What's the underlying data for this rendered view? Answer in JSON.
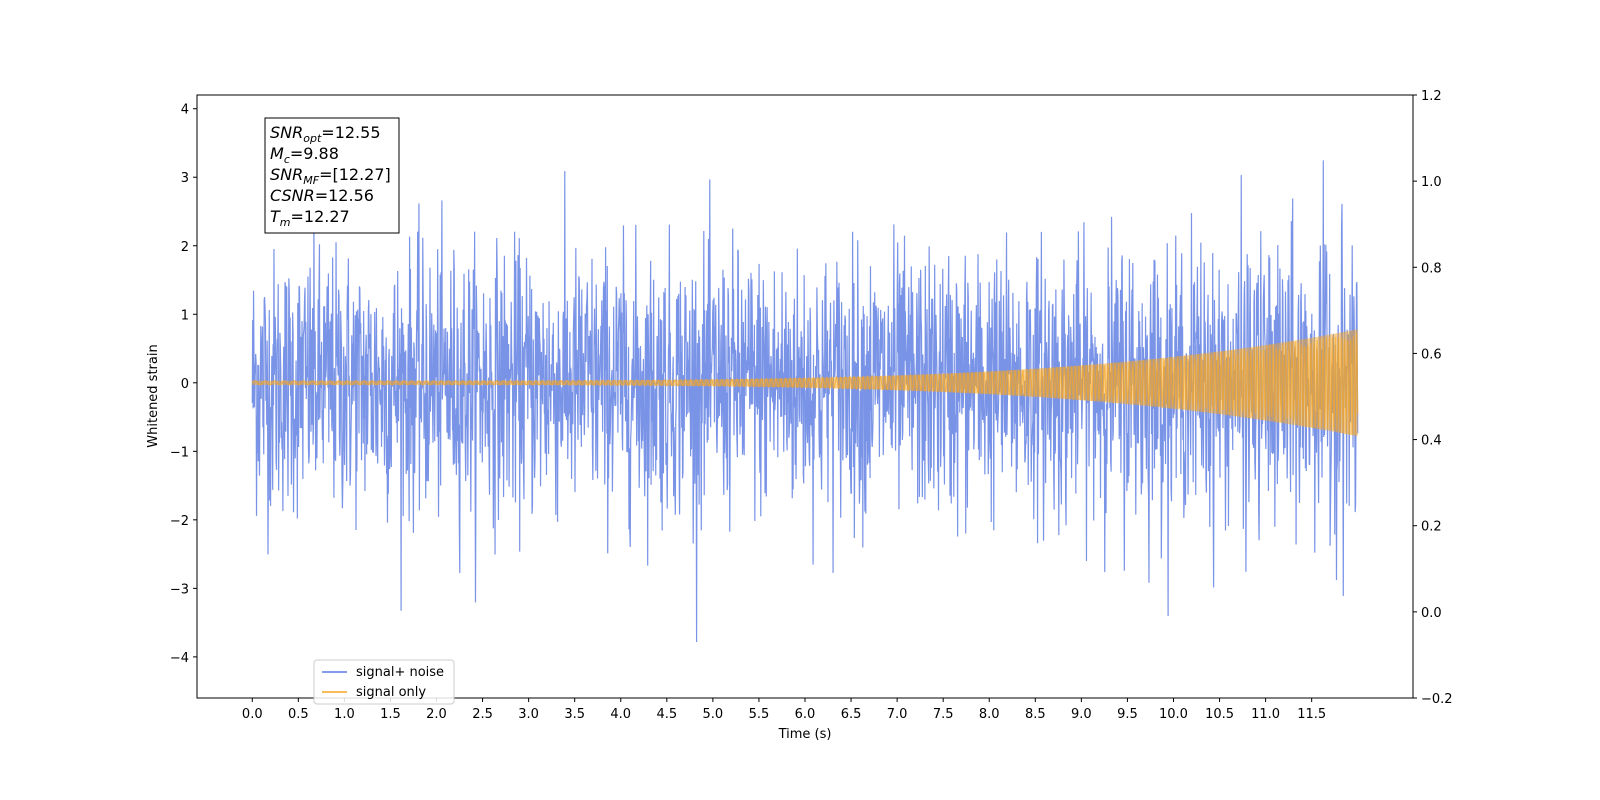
{
  "chart_data": {
    "type": "line",
    "xlabel": "Time (s)",
    "ylabel": "Whitened strain",
    "xlim": [
      -0.6,
      12.6
    ],
    "ylim": [
      -4.6,
      4.2
    ],
    "y2lim": [
      -0.2,
      1.2
    ],
    "xticks": [
      "0.0",
      "0.5",
      "1.0",
      "1.5",
      "2.0",
      "2.5",
      "3.0",
      "3.5",
      "4.0",
      "4.5",
      "5.0",
      "5.5",
      "6.0",
      "6.5",
      "7.0",
      "7.5",
      "8.0",
      "8.5",
      "9.0",
      "9.5",
      "10.0",
      "10.5",
      "11.0",
      "11.5"
    ],
    "yticks": [
      "−4",
      "−3",
      "−2",
      "−1",
      "0",
      "1",
      "2",
      "3",
      "4"
    ],
    "y2ticks": [
      "−0.2",
      "0.0",
      "0.2",
      "0.4",
      "0.6",
      "0.8",
      "1.0",
      "1.2"
    ],
    "duration_s": 12.0,
    "legend_position": "lower-left",
    "series": [
      {
        "name": "signal+ noise",
        "color": "#5b7be2",
        "description": "whitened noise plus inspiral chirp",
        "amplitude_std": 0.95,
        "min": -4.2,
        "max": 3.82
      },
      {
        "name": "signal only",
        "color": "#f6a623",
        "description": "inspiral chirp with amplitude growing toward merger",
        "amplitude_start": 0.03,
        "amplitude_end": 0.78
      }
    ],
    "annotations": [
      {
        "symbol": "SNR",
        "sub": "opt",
        "value": "=12.55"
      },
      {
        "symbol": "M",
        "sub": "c",
        "value": "=9.88"
      },
      {
        "symbol": "SNR",
        "sub": "MF",
        "value": "=[12.27]"
      },
      {
        "symbol": "CSNR",
        "sub": "",
        "value": "=12.56"
      },
      {
        "symbol": "T",
        "sub": "m",
        "value": "=12.27"
      }
    ]
  }
}
